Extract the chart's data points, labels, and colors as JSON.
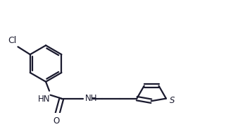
{
  "background_color": "#ffffff",
  "line_color": "#1a1a2e",
  "text_color": "#1a1a2e",
  "line_width": 1.6,
  "font_size": 8.5,
  "figsize": [
    3.58,
    1.97
  ],
  "dpi": 100,
  "xlim": [
    0.0,
    7.2
  ],
  "ylim": [
    -0.3,
    2.2
  ]
}
